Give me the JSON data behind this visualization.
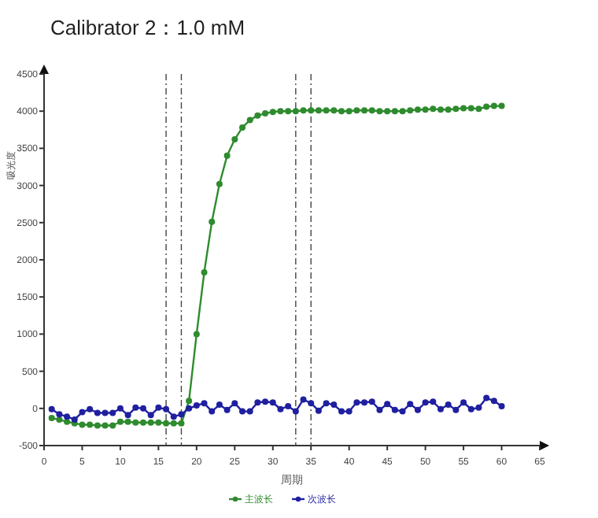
{
  "chart_data": {
    "type": "line",
    "title": "Calibrator 2：1.0 mM",
    "xlabel": "周期",
    "ylabel": "吸光度",
    "x": [
      1,
      2,
      3,
      4,
      5,
      6,
      7,
      8,
      9,
      10,
      11,
      12,
      13,
      14,
      15,
      16,
      17,
      18,
      19,
      20,
      21,
      22,
      23,
      24,
      25,
      26,
      27,
      28,
      29,
      30,
      31,
      32,
      33,
      34,
      35,
      36,
      37,
      38,
      39,
      40,
      41,
      42,
      43,
      44,
      45,
      46,
      47,
      48,
      49,
      50,
      51,
      52,
      53,
      54,
      55,
      56,
      57,
      58,
      59,
      60
    ],
    "series": [
      {
        "name": "主波长",
        "color": "#2e8b2e",
        "values": [
          -130,
          -150,
          -180,
          -200,
          -220,
          -220,
          -230,
          -230,
          -230,
          -180,
          -180,
          -190,
          -190,
          -190,
          -190,
          -200,
          -200,
          -200,
          100,
          1000,
          1830,
          2510,
          3020,
          3400,
          3620,
          3780,
          3880,
          3940,
          3970,
          3990,
          4000,
          4000,
          4000,
          4010,
          4010,
          4010,
          4010,
          4010,
          4000,
          4000,
          4010,
          4010,
          4010,
          4000,
          4000,
          4000,
          4000,
          4010,
          4020,
          4020,
          4030,
          4020,
          4020,
          4030,
          4040,
          4040,
          4030,
          4060,
          4070,
          4070
        ]
      },
      {
        "name": "次波长",
        "color": "#1f1fa0",
        "values": [
          -10,
          -80,
          -110,
          -150,
          -50,
          -10,
          -60,
          -60,
          -60,
          0,
          -90,
          10,
          0,
          -90,
          10,
          -10,
          -110,
          -80,
          0,
          40,
          70,
          -40,
          50,
          -20,
          70,
          -40,
          -40,
          80,
          90,
          80,
          -10,
          30,
          -40,
          120,
          70,
          -30,
          70,
          50,
          -40,
          -40,
          80,
          80,
          90,
          -20,
          60,
          -20,
          -40,
          60,
          -20,
          80,
          90,
          -10,
          50,
          -20,
          80,
          -10,
          10,
          140,
          100,
          30
        ]
      }
    ],
    "xlim": [
      0,
      65
    ],
    "xticks": [
      0,
      5,
      10,
      15,
      20,
      25,
      30,
      35,
      40,
      45,
      50,
      55,
      60,
      65
    ],
    "ylim": [
      -500,
      4500
    ],
    "yticks": [
      -500,
      0,
      500,
      1000,
      1500,
      2000,
      2500,
      3000,
      3500,
      4000,
      4500
    ],
    "ref_lines": [
      {
        "axis": "x",
        "value": 16,
        "line_style": "dashdot"
      },
      {
        "axis": "x",
        "value": 18,
        "line_style": "dashdot"
      },
      {
        "axis": "x",
        "value": 33,
        "line_style": "dashdot"
      },
      {
        "axis": "x",
        "value": 35,
        "line_style": "dashdot"
      }
    ],
    "marker": "circle",
    "legend": "bottom",
    "grid": false
  }
}
